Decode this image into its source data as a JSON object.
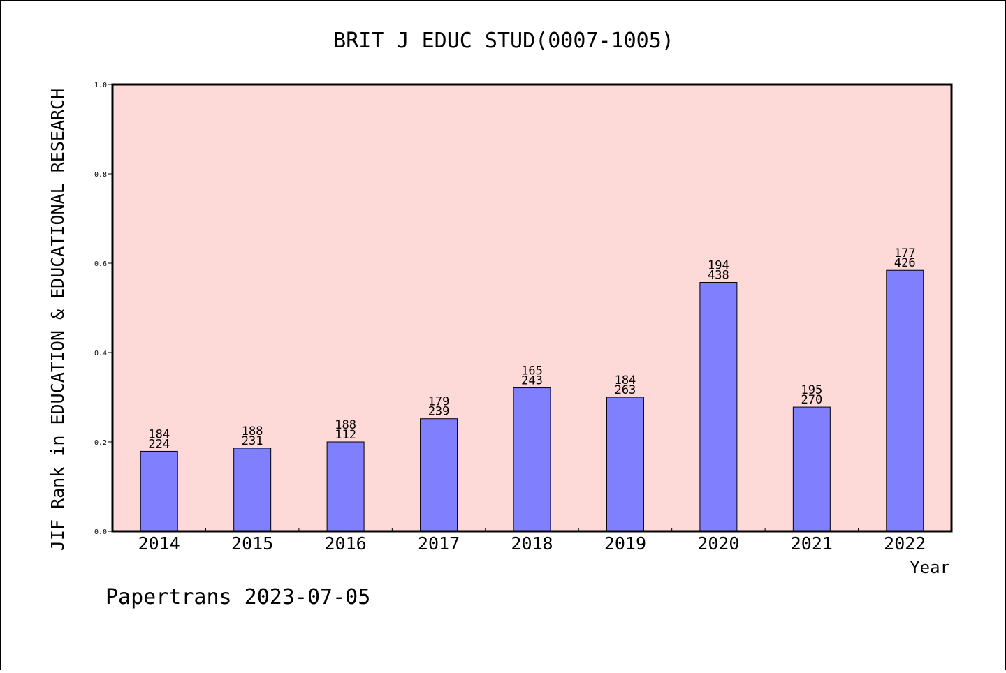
{
  "chart_data": {
    "type": "bar",
    "title": "BRIT J EDUC STUD(0007-1005)",
    "xlabel": "Year",
    "ylabel": "JIF Rank in EDUCATION & EDUCATIONAL RESEARCH",
    "ylim": [
      0,
      1.0
    ],
    "yticks": [
      "0.0",
      "0.2",
      "0.4",
      "0.6",
      "0.8",
      "1.0"
    ],
    "categories": [
      "2014",
      "2015",
      "2016",
      "2017",
      "2018",
      "2019",
      "2020",
      "2021",
      "2022"
    ],
    "values": [
      0.179,
      0.186,
      0.2,
      0.252,
      0.321,
      0.3,
      0.557,
      0.278,
      0.584
    ],
    "labels_top": [
      "184",
      "188",
      "188",
      "179",
      "165",
      "184",
      "194",
      "195",
      "177"
    ],
    "labels_bottom": [
      "224",
      "231",
      "112",
      "239",
      "243",
      "263",
      "438",
      "270",
      "426"
    ],
    "grid": false,
    "colors": {
      "plot_background": "#fddad8",
      "bar_fill": "#8080ff",
      "bar_stroke": "#000000"
    }
  },
  "footer": {
    "credit": "Papertrans 2023-07-05"
  }
}
